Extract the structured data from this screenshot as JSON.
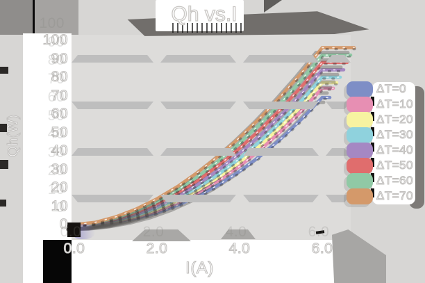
{
  "title": "Qh vs.I",
  "axes": {
    "y_label": "Qh(W)",
    "x_label": "I(A)",
    "y_ticks": [
      "100",
      "90",
      "80",
      "70",
      "60",
      "50",
      "40",
      "30",
      "20",
      "10",
      "0"
    ],
    "x_ticks": [
      "0.0",
      "2.0",
      "4.0",
      "6.0"
    ]
  },
  "legend": {
    "position": "right",
    "items": [
      {
        "label": "ΔT=0",
        "color": "#7e8ec6"
      },
      {
        "label": "ΔT=10",
        "color": "#e78fb3"
      },
      {
        "label": "ΔT=20",
        "color": "#f7f3a1"
      },
      {
        "label": "ΔT=30",
        "color": "#8fd2dd"
      },
      {
        "label": "ΔT=40",
        "color": "#a588c3"
      },
      {
        "label": "ΔT=50",
        "color": "#e06d6d"
      },
      {
        "label": "ΔT=60",
        "color": "#90c9a5"
      },
      {
        "label": "ΔT=70",
        "color": "#d4996a"
      }
    ]
  },
  "chart_data": {
    "type": "line",
    "title": "Qh vs.I",
    "xlabel": "I(A)",
    "ylabel": "Qh(W)",
    "xlim": [
      0,
      6.0
    ],
    "ylim": [
      0,
      100
    ],
    "x_tick_step": 2.0,
    "y_tick_step": 10,
    "grid": "horizontal-bands",
    "legend_position": "right",
    "x": [
      0,
      0.5,
      1.0,
      1.5,
      2.0,
      2.5,
      3.0,
      3.5,
      4.0,
      4.5,
      5.0,
      5.5,
      6.0
    ],
    "series": [
      {
        "name": "ΔT=0",
        "color": "#7e8ec6",
        "values": [
          0,
          0.3,
          1.5,
          3.5,
          6.5,
          10.5,
          15.6,
          21.7,
          28.9,
          37.2,
          46.6,
          57.2,
          69
        ]
      },
      {
        "name": "ΔT=10",
        "color": "#e78fb3",
        "values": [
          0,
          0.4,
          1.7,
          4.1,
          7.4,
          11.9,
          17.4,
          24.0,
          31.7,
          40.6,
          50.6,
          61.7,
          74
        ]
      },
      {
        "name": "ΔT=20",
        "color": "#f7f3a1",
        "values": [
          0,
          0.5,
          2.0,
          4.6,
          8.3,
          13.0,
          18.9,
          25.8,
          33.8,
          42.9,
          53.2,
          64.5,
          77
        ]
      },
      {
        "name": "ΔT=30",
        "color": "#8fd2dd",
        "values": [
          0,
          0.6,
          2.3,
          5.1,
          9.1,
          14.1,
          20.3,
          27.5,
          35.8,
          45.3,
          55.8,
          67.3,
          80
        ]
      },
      {
        "name": "ΔT=40",
        "color": "#a588c3",
        "values": [
          0,
          0.7,
          2.7,
          5.9,
          10.2,
          15.6,
          22.2,
          29.8,
          38.6,
          48.3,
          59.2,
          71.1,
          84
        ]
      },
      {
        "name": "ΔT=50",
        "color": "#e06d6d",
        "values": [
          0,
          0.9,
          3.1,
          6.7,
          11.4,
          17.3,
          24.2,
          32.3,
          41.4,
          51.5,
          62.7,
          74.9,
          88
        ]
      },
      {
        "name": "ΔT=60",
        "color": "#90c9a5",
        "values": [
          0,
          1.0,
          3.6,
          7.5,
          12.6,
          18.9,
          26.2,
          34.7,
          44.2,
          54.7,
          66.1,
          78.6,
          92
        ]
      },
      {
        "name": "ΔT=70",
        "color": "#d4996a",
        "values": [
          0,
          1.2,
          4.2,
          8.5,
          14.0,
          20.7,
          28.6,
          37.4,
          47.2,
          58.0,
          69.8,
          82.4,
          96
        ]
      }
    ]
  }
}
